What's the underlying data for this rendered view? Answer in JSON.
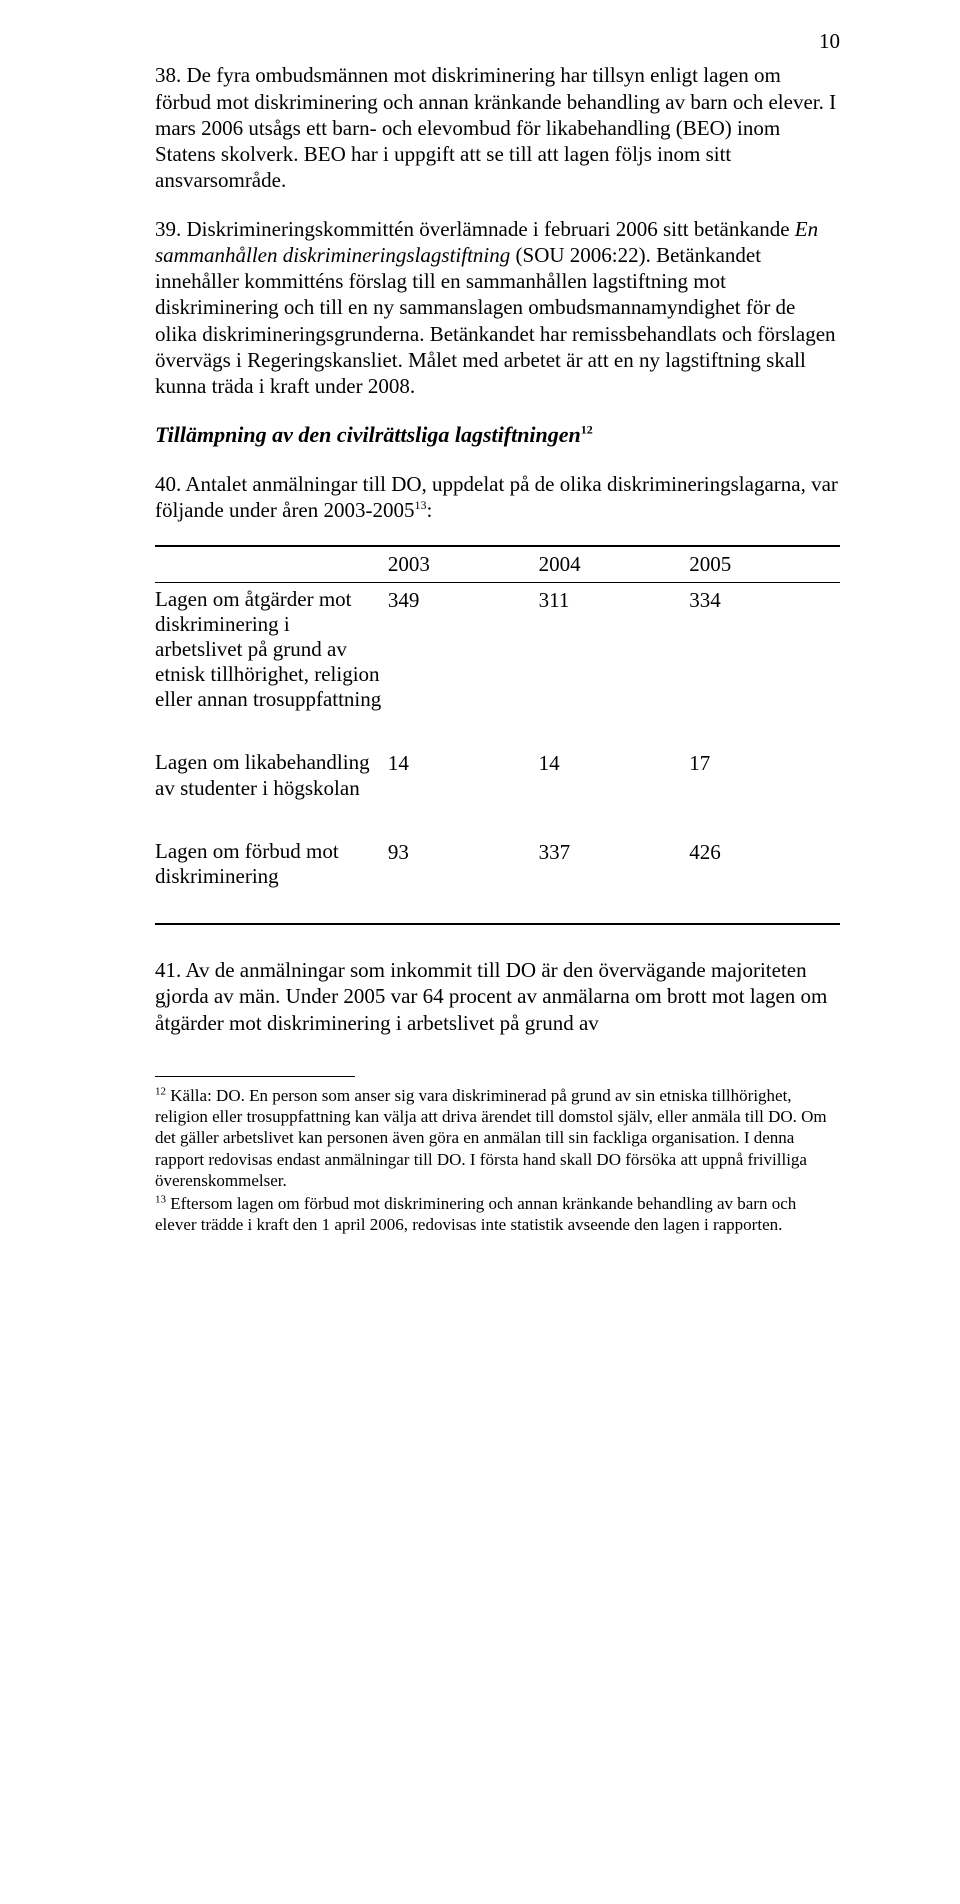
{
  "page_number": "10",
  "para38_a": "38. De fyra ombudsmännen mot diskriminering har tillsyn enligt lagen om förbud mot diskriminering och annan kränkande behandling av barn och elever. I mars 2006 utsågs ett barn- och elevombud för likabehandling (BEO) inom Statens skolverk. BEO har i uppgift att se till att lagen följs inom sitt ansvarsområde.",
  "para39_a": "39. Diskrimineringskommittén överlämnade i februari 2006 sitt betänkande ",
  "para39_em": "En sammanhållen diskrimineringslagstiftning",
  "para39_b": " (SOU 2006:22). Betänkandet innehåller kommitténs förslag till en sammanhållen lagstiftning mot diskriminering och till en ny sammanslagen ombudsmannamyndighet för de olika diskrimineringsgrunderna. Betänkandet har remissbehandlats och förslagen övervägs i Regeringskansliet. Målet med arbetet är att en ny lagstiftning skall kunna träda i kraft under 2008.",
  "subheading_text": "Tillämpning av den civilrättsliga lagstiftningen",
  "subheading_fn": "12",
  "para40_a": "40. Antalet anmälningar till DO, uppdelat på de olika diskrimineringslagarna, var följande under åren 2003-2005",
  "para40_fn": "13",
  "para40_b": ":",
  "table": {
    "headers": [
      "",
      "2003",
      "2004",
      "2005"
    ],
    "rows": [
      {
        "label": "Lagen om åtgärder mot diskriminering i arbetslivet på grund av etnisk tillhörighet, religion eller annan trosuppfattning",
        "c1": "349",
        "c2": "311",
        "c3": "334"
      },
      {
        "label": "Lagen om likabehandling av studenter i högskolan",
        "c1": "14",
        "c2": "14",
        "c3": "17"
      },
      {
        "label": "Lagen om förbud mot diskriminering",
        "c1": "93",
        "c2": "337",
        "c3": "426"
      }
    ]
  },
  "para41": "41. Av de anmälningar som inkommit till DO är den övervägande majoriteten gjorda av män. Under 2005 var 64 procent av anmälarna om brott mot lagen om åtgärder mot diskriminering i arbetslivet på grund av",
  "fn12_sup": "12",
  "fn12_text": " Källa: DO. En person som anser sig vara diskriminerad på grund av sin etniska tillhörighet, religion eller trosuppfattning kan välja att driva ärendet till domstol själv, eller anmäla till DO. Om det gäller arbetslivet kan personen även göra en anmälan till sin fackliga organisation. I denna rapport redovisas endast anmälningar till DO. I första hand skall DO försöka att uppnå frivilliga överenskommelser.",
  "fn13_sup": "13",
  "fn13_text": " Eftersom lagen om förbud mot diskriminering och annan kränkande behandling av barn och elever trädde i kraft den 1 april 2006, redovisas inte statistik avseende den lagen i rapporten."
}
